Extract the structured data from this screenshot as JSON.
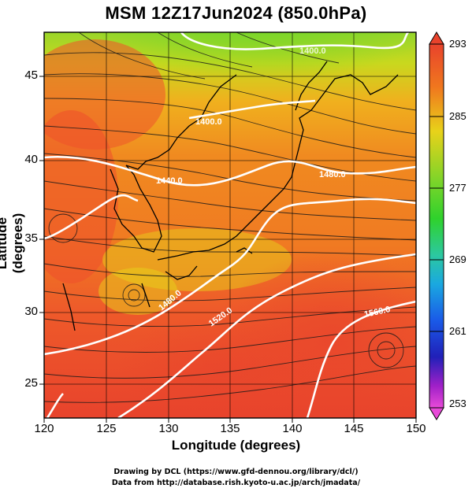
{
  "title": "MSM 12Z17Jun2024 (850.0hPa)",
  "axes": {
    "xlabel": "Longitude (degrees)",
    "ylabel": "Latitude  (degrees)",
    "xticks": [
      "120",
      "125",
      "130",
      "135",
      "140",
      "145",
      "150"
    ],
    "yticks": [
      "45",
      "40",
      "35",
      "30",
      "25"
    ]
  },
  "colorbar": {
    "ticks": [
      "293",
      "285",
      "277",
      "269",
      "261",
      "253"
    ]
  },
  "contour_labels": [
    "1400.0",
    "1440.0",
    "1480.0",
    "1480.0",
    "1520.0",
    "1560.0",
    "1400.0"
  ],
  "credits": {
    "line1": "Drawing by DCL (https://www.gfd-dennou.org/library/dcl/)",
    "line2": "Data from http://database.rish.kyoto-u.ac.jp/arch/jmadata/"
  },
  "colors": {
    "warm": "#e8432c",
    "orange": "#f07a1e",
    "yellow": "#e8d21a",
    "green": "#2fd22c"
  }
}
